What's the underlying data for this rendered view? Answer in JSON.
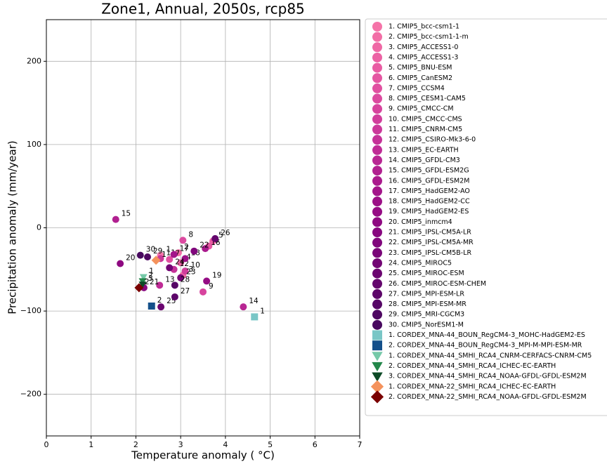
{
  "chart_data": {
    "type": "scatter",
    "title": "Zone1, Annual, 2050s, rcp85",
    "xlabel": "Temperature anomaly ( °C)",
    "ylabel": "Precipitation anomaly (mm/year)",
    "xlim": [
      0,
      7
    ],
    "xticks": [
      0,
      1,
      2,
      3,
      4,
      5,
      6,
      7
    ],
    "ylim": [
      -250,
      250
    ],
    "yticks": [
      {
        "value": -200,
        "label": "−200"
      },
      {
        "value": -100,
        "label": "−100"
      },
      0,
      100,
      200
    ],
    "grid": true,
    "legend": "outside right",
    "series": [
      {
        "name": "1. CMIP5_bcc-csm1-1",
        "color": "#f573a8",
        "marker": "circle",
        "x": [
          2.55
        ],
        "y": [
          -33
        ],
        "point_labels": [
          "1"
        ]
      },
      {
        "name": "2. CMIP5_bcc-csm1-1-m",
        "color": "#f26ea6",
        "marker": "circle",
        "x": [
          2.95
        ],
        "y": [
          -30
        ],
        "point_labels": [
          "2"
        ]
      },
      {
        "name": "3. CMIP5_ACCESS1-0",
        "color": "#ef68a5",
        "marker": "circle",
        "x": [
          3.05
        ],
        "y": [
          -57
        ],
        "point_labels": [
          "3"
        ]
      },
      {
        "name": "4. CMIP5_ACCESS1-3",
        "color": "#ec62a4",
        "marker": "circle",
        "x": [
          3.0
        ],
        "y": [
          -42
        ],
        "point_labels": [
          "4"
        ]
      },
      {
        "name": "5. CMIP5_BNU-ESM",
        "color": "#e95ca3",
        "marker": "circle",
        "x": [
          3.72
        ],
        "y": [
          -16
        ],
        "point_labels": [
          "5"
        ]
      },
      {
        "name": "6. CMIP5_CanESM2",
        "color": "#e556a2",
        "marker": "circle",
        "x": [
          3.63
        ],
        "y": [
          -22
        ],
        "point_labels": [
          "6"
        ]
      },
      {
        "name": "7. CMIP5_CCSM4",
        "color": "#e150a1",
        "marker": "circle",
        "x": [
          2.75
        ],
        "y": [
          -38
        ],
        "point_labels": [
          "7"
        ]
      },
      {
        "name": "8. CMIP5_CESM1-CAM5",
        "color": "#dc4aa0",
        "marker": "circle",
        "x": [
          3.05
        ],
        "y": [
          -15
        ],
        "point_labels": [
          "8"
        ]
      },
      {
        "name": "9. CMIP5_CMCC-CM",
        "color": "#d7449e",
        "marker": "circle",
        "x": [
          3.5
        ],
        "y": [
          -77
        ],
        "point_labels": [
          "9"
        ]
      },
      {
        "name": "10. CMIP5_CMCC-CMS",
        "color": "#d13e9c",
        "marker": "circle",
        "x": [
          3.1
        ],
        "y": [
          -52
        ],
        "point_labels": [
          "10"
        ]
      },
      {
        "name": "11. CMIP5_CNRM-CM5",
        "color": "#cb389a",
        "marker": "circle",
        "x": [
          2.55
        ],
        "y": [
          -37
        ],
        "point_labels": [
          "11"
        ]
      },
      {
        "name": "12. CMIP5_CSIRO-Mk3-6-0",
        "color": "#c53298",
        "marker": "circle",
        "x": [
          2.85
        ],
        "y": [
          -50
        ],
        "point_labels": [
          "12"
        ]
      },
      {
        "name": "13. CMIP5_EC-EARTH",
        "color": "#bf2c96",
        "marker": "circle",
        "x": [
          2.53
        ],
        "y": [
          -69
        ],
        "point_labels": [
          "13"
        ]
      },
      {
        "name": "14. CMIP5_GFDL-CM3",
        "color": "#b82693",
        "marker": "circle",
        "x": [
          4.4
        ],
        "y": [
          -95
        ],
        "point_labels": [
          "14"
        ]
      },
      {
        "name": "15. CMIP5_GFDL-ESM2G",
        "color": "#b12090",
        "marker": "circle",
        "x": [
          1.55
        ],
        "y": [
          10
        ],
        "point_labels": [
          "15"
        ]
      },
      {
        "name": "16. CMIP5_GFDL-ESM2M",
        "color": "#aa1a8d",
        "marker": "circle",
        "x": [
          3.55
        ],
        "y": [
          -25
        ],
        "point_labels": [
          "16"
        ]
      },
      {
        "name": "17. CMIP5_HadGEM2-AO",
        "color": "#a3158a",
        "marker": "circle",
        "x": [
          2.85
        ],
        "y": [
          -32
        ],
        "point_labels": [
          "17"
        ]
      },
      {
        "name": "18. CMIP5_HadGEM2-CC",
        "color": "#9c1087",
        "marker": "circle",
        "x": [
          3.1
        ],
        "y": [
          -37
        ],
        "point_labels": [
          "18"
        ]
      },
      {
        "name": "19. CMIP5_HadGEM2-ES",
        "color": "#950c84",
        "marker": "circle",
        "x": [
          3.58
        ],
        "y": [
          -64
        ],
        "point_labels": [
          "19"
        ]
      },
      {
        "name": "20. CMIP5_inmcm4",
        "color": "#8e0981",
        "marker": "circle",
        "x": [
          1.65
        ],
        "y": [
          -43
        ],
        "point_labels": [
          "20"
        ]
      },
      {
        "name": "21. CMIP5_IPSL-CM5A-LR",
        "color": "#87077f",
        "marker": "circle",
        "x": [
          2.18
        ],
        "y": [
          -72
        ],
        "point_labels": [
          "21"
        ]
      },
      {
        "name": "22. CMIP5_IPSL-CM5A-MR",
        "color": "#80067c",
        "marker": "circle",
        "x": [
          3.3
        ],
        "y": [
          -28
        ],
        "point_labels": [
          "22"
        ]
      },
      {
        "name": "23. CMIP5_IPSL-CM5B-LR",
        "color": "#790578",
        "marker": "circle",
        "x": [
          3.0
        ],
        "y": [
          -60
        ],
        "point_labels": [
          "23"
        ]
      },
      {
        "name": "24. CMIP5_MIROC5",
        "color": "#720574",
        "marker": "circle",
        "x": [
          2.75
        ],
        "y": [
          -48
        ],
        "point_labels": [
          "24"
        ]
      },
      {
        "name": "25. CMIP5_MIROC-ESM",
        "color": "#6b0570",
        "marker": "circle",
        "x": [
          2.56
        ],
        "y": [
          -95
        ],
        "point_labels": [
          "25"
        ]
      },
      {
        "name": "26. CMIP5_MIROC-ESM-CHEM",
        "color": "#64066d",
        "marker": "circle",
        "x": [
          3.77
        ],
        "y": [
          -13
        ],
        "point_labels": [
          "26"
        ]
      },
      {
        "name": "27. CMIP5_MPI-ESM-LR",
        "color": "#5d0669",
        "marker": "circle",
        "x": [
          2.87
        ],
        "y": [
          -83
        ],
        "point_labels": [
          "27"
        ]
      },
      {
        "name": "28. CMIP5_MPI-ESM-MR",
        "color": "#560766",
        "marker": "circle",
        "x": [
          2.87
        ],
        "y": [
          -69
        ],
        "point_labels": [
          "28"
        ]
      },
      {
        "name": "29. CMIP5_MRI-CGCM3",
        "color": "#4f0862",
        "marker": "circle",
        "x": [
          2.26
        ],
        "y": [
          -35
        ],
        "point_labels": [
          "29"
        ]
      },
      {
        "name": "30. CMIP5_NorESM1-M",
        "color": "#48095f",
        "marker": "circle",
        "x": [
          2.1
        ],
        "y": [
          -33
        ],
        "point_labels": [
          "30"
        ]
      },
      {
        "name": "1. CORDEX_MNA-44_BOUN_RegCM4-3_MOHC-HadGEM2-ES",
        "color": "#79c6c6",
        "marker": "square",
        "x": [
          4.65
        ],
        "y": [
          -107
        ],
        "point_labels": [
          "1"
        ]
      },
      {
        "name": "2. CORDEX_MNA-44_BOUN_RegCM4-3_MPI-M-MPI-ESM-MR",
        "color": "#14508a",
        "marker": "square",
        "x": [
          2.35
        ],
        "y": [
          -94
        ],
        "point_labels": [
          "2"
        ]
      },
      {
        "name": "1. CORDEX_MNA-44_SMHI_RCA4_CNRM-CERFACS-CNRM-CM5",
        "color": "#76c9a8",
        "marker": "triangle",
        "x": [
          2.17
        ],
        "y": [
          -59
        ],
        "point_labels": [
          "1"
        ]
      },
      {
        "name": "2. CORDEX_MNA-44_SMHI_RCA4_ICHEC-EC-EARTH",
        "color": "#23874a",
        "marker": "triangle",
        "x": [
          2.15
        ],
        "y": [
          -64
        ],
        "point_labels": [
          "2"
        ]
      },
      {
        "name": "3. CORDEX_MNA-44_SMHI_RCA4_NOAA-GFDL-GFDL-ESM2M",
        "color": "#0c4a26",
        "marker": "triangle",
        "x": [
          2.15
        ],
        "y": [
          -68
        ],
        "point_labels": [
          "3"
        ]
      },
      {
        "name": "1. CORDEX_MNA-22_SMHI_RCA4_ICHEC-EC-EARTH",
        "color": "#f4925c",
        "marker": "diamond",
        "x": [
          2.45
        ],
        "y": [
          -39
        ],
        "point_labels": [
          "1"
        ]
      },
      {
        "name": "2. CORDEX_MNA-22_SMHI_RCA4_NOAA-GFDL-GFDL-ESM2M",
        "color": "#7a0000",
        "marker": "diamond",
        "x": [
          2.07
        ],
        "y": [
          -72
        ],
        "point_labels": [
          "2"
        ]
      }
    ]
  }
}
